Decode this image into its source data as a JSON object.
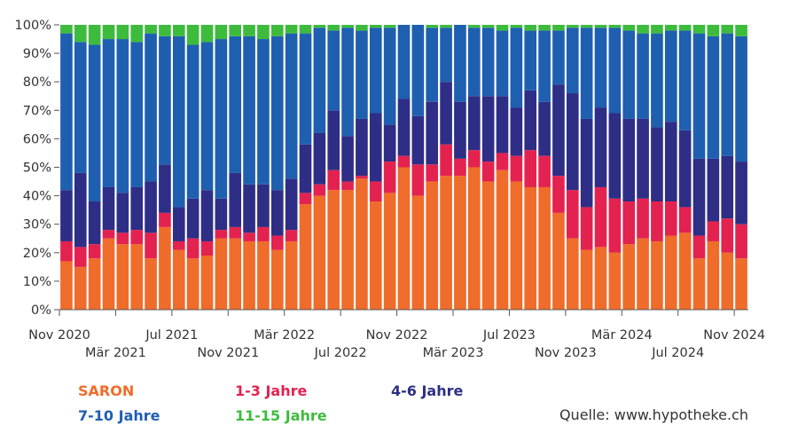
{
  "chart_data": {
    "type": "bar",
    "stacked": true,
    "ylim": [
      0,
      100
    ],
    "yticks": [
      "0%",
      "10%",
      "20%",
      "30%",
      "40%",
      "50%",
      "60%",
      "70%",
      "80%",
      "90%",
      "100%"
    ],
    "xticks_top": [
      "Nov 2020",
      "Jul 2021",
      "Mär 2022",
      "Nov 2022",
      "Jul 2023",
      "Mär 2024",
      "Nov 2024"
    ],
    "xticks_bottom": [
      "Mär 2021",
      "Nov 2021",
      "Jul 2022",
      "Mär 2023",
      "Nov 2023",
      "Jul 2024"
    ],
    "grid": false,
    "legend_position": "bottom",
    "series": [
      {
        "name": "SARON",
        "color": "#ef6c2a",
        "values": [
          17,
          15,
          18,
          25,
          23,
          23,
          18,
          29,
          21,
          18,
          19,
          25,
          25,
          24,
          24,
          21,
          24,
          37,
          40,
          42,
          42,
          46,
          38,
          41,
          50,
          40,
          45,
          47,
          47,
          50,
          45,
          49,
          45,
          43,
          43,
          34,
          25,
          21,
          22,
          20,
          23,
          25,
          24,
          26,
          27,
          18,
          24,
          20,
          18
        ]
      },
      {
        "name": "1-3 Jahre",
        "color": "#e4224f",
        "values": [
          7,
          7,
          5,
          3,
          4,
          5,
          9,
          5,
          3,
          7,
          5,
          3,
          4,
          3,
          5,
          5,
          4,
          4,
          4,
          7,
          3,
          1,
          7,
          11,
          4,
          11,
          6,
          11,
          6,
          6,
          7,
          6,
          9,
          13,
          11,
          13,
          17,
          15,
          21,
          19,
          15,
          14,
          14,
          12,
          9,
          8,
          7,
          12,
          12
        ]
      },
      {
        "name": "4-6 Jahre",
        "color": "#2e2e86",
        "values": [
          18,
          26,
          15,
          15,
          14,
          15,
          18,
          17,
          12,
          14,
          18,
          11,
          19,
          17,
          15,
          16,
          18,
          17,
          18,
          21,
          16,
          20,
          24,
          13,
          20,
          17,
          22,
          22,
          20,
          19,
          23,
          20,
          17,
          21,
          19,
          32,
          34,
          31,
          28,
          30,
          29,
          28,
          26,
          28,
          27,
          27,
          22,
          22,
          22
        ]
      },
      {
        "name": "7-10 Jahre",
        "color": "#1f5fb0",
        "values": [
          55,
          46,
          55,
          52,
          54,
          51,
          52,
          45,
          60,
          54,
          52,
          56,
          48,
          52,
          51,
          54,
          51,
          39,
          37,
          28,
          38,
          31,
          30,
          34,
          26,
          32,
          26,
          19,
          27,
          24,
          24,
          23,
          28,
          21,
          25,
          19,
          23,
          32,
          28,
          30,
          31,
          30,
          33,
          32,
          35,
          44,
          43,
          43,
          44
        ]
      },
      {
        "name": "11-15 Jahre",
        "color": "#3dbb3d",
        "values": [
          3,
          6,
          7,
          5,
          5,
          6,
          3,
          4,
          4,
          7,
          6,
          5,
          4,
          4,
          5,
          4,
          3,
          3,
          1,
          2,
          1,
          2,
          1,
          1,
          0,
          0,
          1,
          1,
          0,
          1,
          1,
          2,
          1,
          2,
          2,
          2,
          1,
          1,
          1,
          1,
          2,
          3,
          3,
          2,
          2,
          3,
          4,
          3,
          4
        ]
      }
    ]
  },
  "legend": {
    "items": [
      "SARON",
      "1-3 Jahre",
      "4-6 Jahre",
      "7-10 Jahre",
      "11-15 Jahre"
    ]
  },
  "source": "Quelle: www.hypotheke.ch"
}
